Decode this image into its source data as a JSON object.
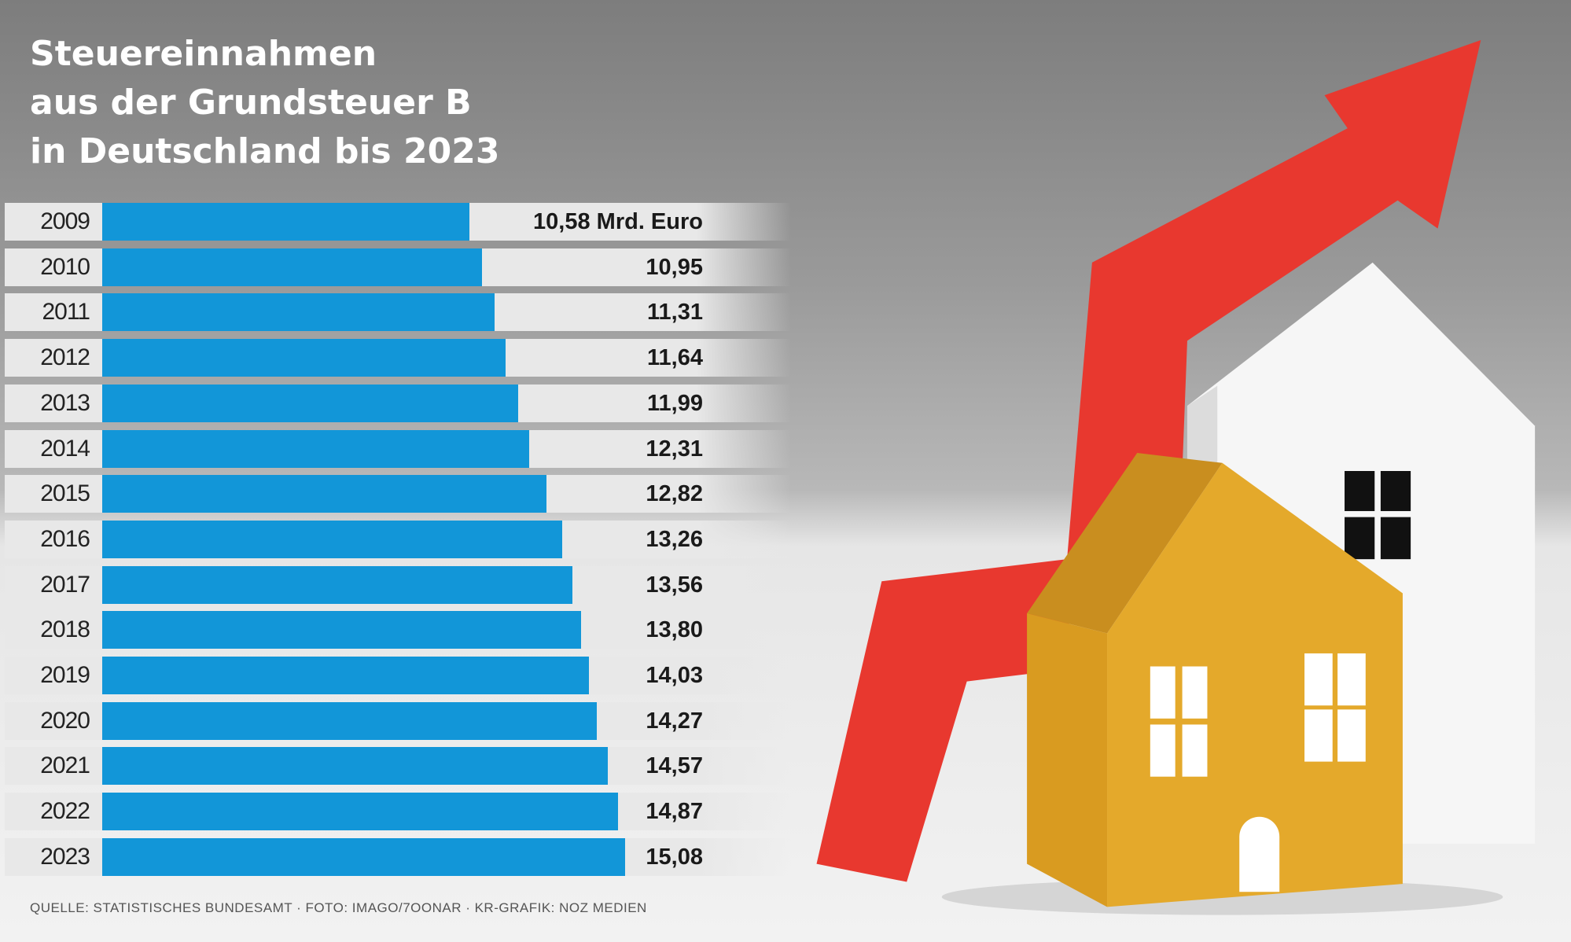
{
  "title_lines": [
    "Steuereinnahmen",
    "aus der Grundsteuer B",
    "in Deutschland bis 2023"
  ],
  "source": "QUELLE: STATISTISCHES BUNDESAMT · FOTO: IMAGO/7OONAR · KR-GRAFIK: NOZ MEDIEN",
  "colors": {
    "bar": "#1296d8",
    "arrow": "#e8382f",
    "house_front": "#e2a72a",
    "house_back": "#f7f7f7"
  },
  "chart_data": {
    "type": "bar",
    "orientation": "horizontal",
    "title": "Steuereinnahmen aus der Grundsteuer B in Deutschland bis 2023",
    "unit": "Mrd. Euro",
    "categories": [
      "2009",
      "2010",
      "2011",
      "2012",
      "2013",
      "2014",
      "2015",
      "2016",
      "2017",
      "2018",
      "2019",
      "2020",
      "2021",
      "2022",
      "2023"
    ],
    "values": [
      10.58,
      10.95,
      11.31,
      11.64,
      11.99,
      12.31,
      12.82,
      13.26,
      13.56,
      13.8,
      14.03,
      14.27,
      14.57,
      14.87,
      15.08
    ],
    "labels": [
      "10,58 Mrd. Euro",
      "10,95",
      "11,31",
      "11,64",
      "11,99",
      "12,31",
      "12,82",
      "13,26",
      "13,56",
      "13,80",
      "14,03",
      "14,27",
      "14,57",
      "14,87",
      "15,08"
    ],
    "grid": false
  }
}
